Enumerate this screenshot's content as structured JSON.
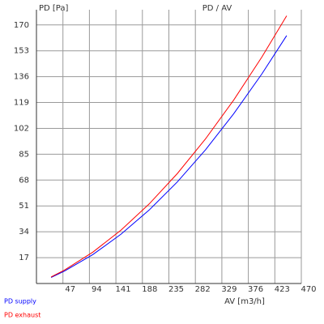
{
  "chart_data": {
    "type": "line",
    "title": "PD / AV",
    "y_label": "PD [Pa]",
    "x_label": "AV [m3/h]",
    "x": [
      26,
      50,
      100,
      150,
      200,
      250,
      300,
      350,
      400,
      444
    ],
    "series": [
      {
        "name": "PD supply",
        "color": "#0000ff",
        "values": [
          4.0,
          8.2,
          19.0,
          32.4,
          48.3,
          66.8,
          87.9,
          111.6,
          137.8,
          163.0
        ]
      },
      {
        "name": "PD exhaust",
        "color": "#ff0000",
        "values": [
          4.3,
          8.9,
          20.6,
          35.1,
          52.3,
          72.3,
          95.1,
          120.6,
          148.9,
          176.0
        ]
      }
    ],
    "xlim": [
      0,
      470
    ],
    "ylim": [
      0,
      180
    ],
    "xticks": [
      47,
      94,
      141,
      188,
      235,
      282,
      329,
      376,
      423,
      470
    ],
    "yticks": [
      17,
      34,
      51,
      68,
      85,
      102,
      119,
      136,
      153,
      170
    ],
    "grid": true
  }
}
